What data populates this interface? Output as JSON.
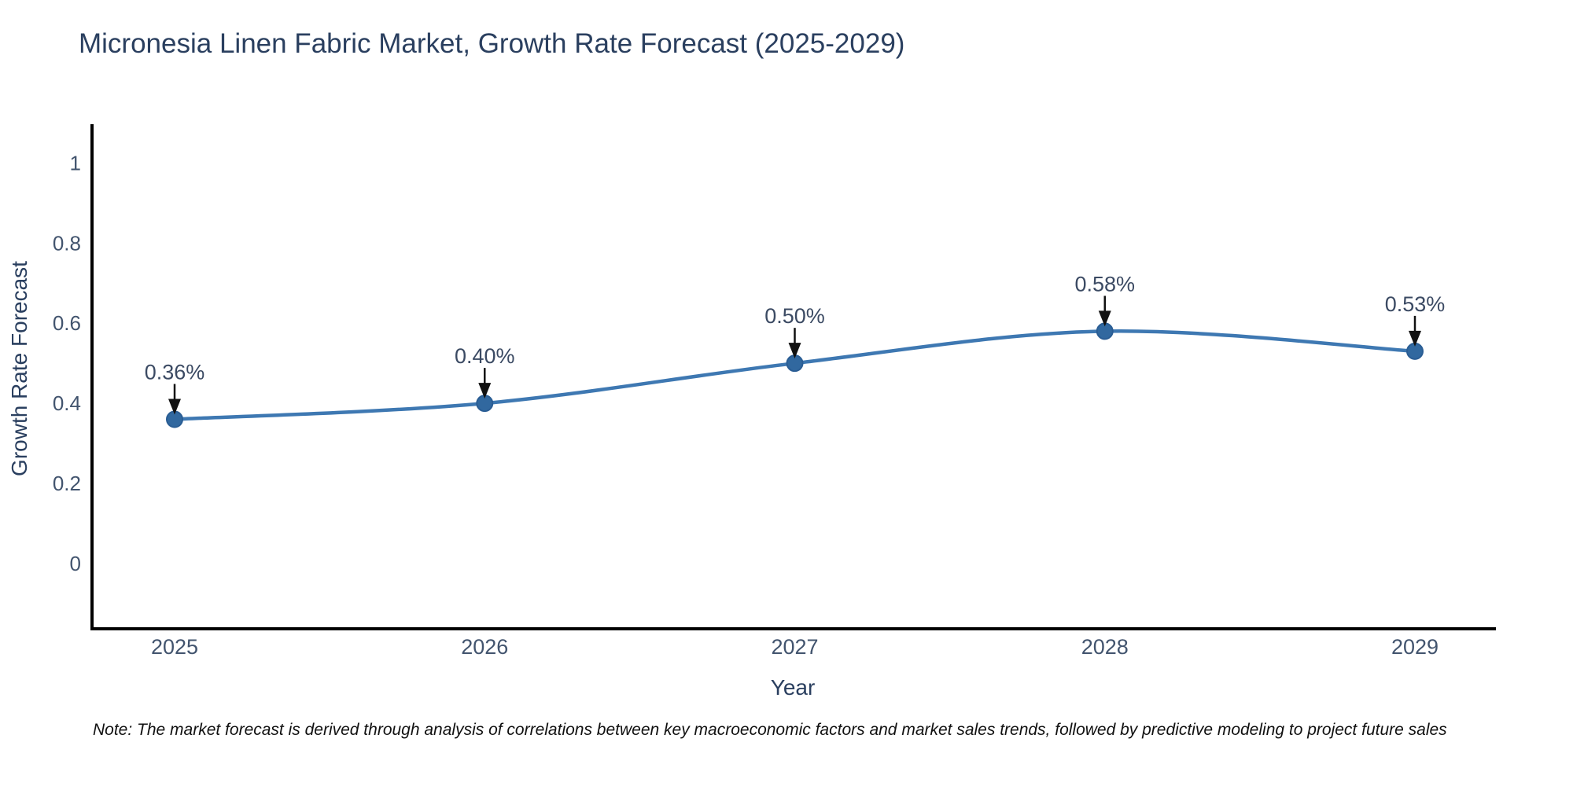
{
  "note": "Note: The market forecast is derived through analysis of correlations between key macroeconomic factors and market sales trends, followed by predictive modeling to project future sales",
  "colors": {
    "line": "#3e78b2",
    "marker_fill": "#31689f",
    "marker_edge": "#2a5d94",
    "arrow": "#111111",
    "axis_line": "#000000",
    "title_text": "#2a3f5f",
    "tick_text": "#42546e",
    "annotation_text": "#3b4a63",
    "background": "#ffffff"
  },
  "chart_data": {
    "type": "line",
    "title": "Micronesia Linen Fabric Market, Growth Rate Forecast (2025-2029)",
    "xlabel": "Year",
    "ylabel": "Growth Rate Forecast",
    "categories": [
      "2025",
      "2026",
      "2027",
      "2028",
      "2029"
    ],
    "series": [
      {
        "name": "Growth Rate Forecast",
        "values": [
          0.36,
          0.4,
          0.5,
          0.58,
          0.53
        ],
        "point_labels": [
          "0.36%",
          "0.40%",
          "0.50%",
          "0.58%",
          "0.53%"
        ]
      }
    ],
    "line_shape": "spline",
    "markers": true,
    "annotations_have_arrows": true,
    "ytick_labels": [
      "0",
      "0.2",
      "0.4",
      "0.6",
      "0.8",
      "1"
    ],
    "ytick_values": [
      0,
      0.2,
      0.4,
      0.6,
      0.8,
      1
    ],
    "ylim": [
      -0.163,
      1.093
    ],
    "grid": false,
    "legend_position": "none"
  }
}
